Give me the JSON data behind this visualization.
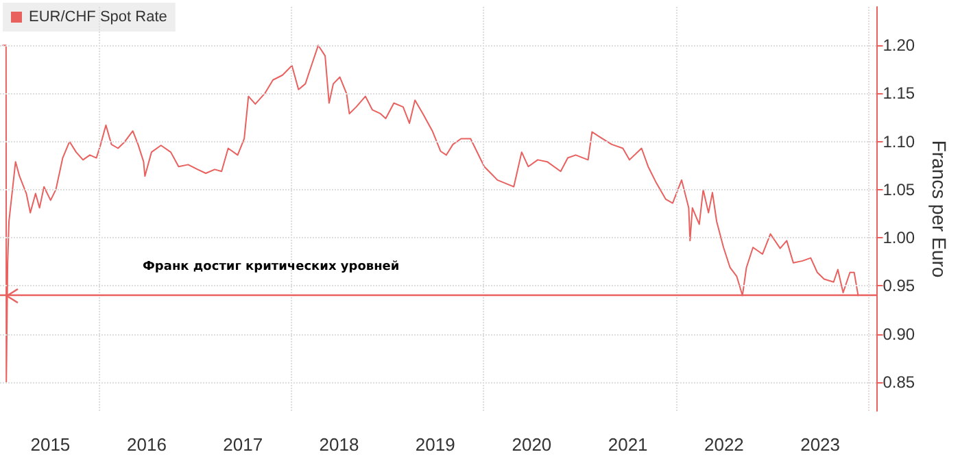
{
  "chart_data": {
    "type": "line",
    "ylabel": "Francs per Euro",
    "x": [
      "2015-01-02",
      "2015-01-14",
      "2015-01-15",
      "2015-01-20",
      "2015-01-25",
      "2015-02-19",
      "2015-03-06",
      "2015-04-01",
      "2015-04-16",
      "2015-05-06",
      "2015-05-21",
      "2015-06-07",
      "2015-07-02",
      "2015-07-22",
      "2015-08-17",
      "2015-09-12",
      "2015-10-07",
      "2015-11-02",
      "2015-11-28",
      "2015-12-23",
      "2016-01-08",
      "2016-01-28",
      "2016-02-18",
      "2016-03-14",
      "2016-04-09",
      "2016-05-09",
      "2016-05-29",
      "2016-06-19",
      "2016-06-24",
      "2016-07-19",
      "2016-08-24",
      "2016-09-30",
      "2016-10-30",
      "2016-12-05",
      "2017-01-10",
      "2017-02-10",
      "2017-03-16",
      "2017-04-11",
      "2017-05-06",
      "2017-06-11",
      "2017-07-06",
      "2017-07-22",
      "2017-08-17",
      "2017-09-22",
      "2017-10-23",
      "2017-11-28",
      "2018-01-03",
      "2018-01-28",
      "2018-02-23",
      "2018-03-18",
      "2018-04-13",
      "2018-05-09",
      "2018-05-24",
      "2018-06-09",
      "2018-07-04",
      "2018-07-29",
      "2018-08-09",
      "2018-09-04",
      "2018-10-09",
      "2018-11-04",
      "2018-12-05",
      "2018-12-25",
      "2019-01-25",
      "2019-03-01",
      "2019-03-25",
      "2019-04-15",
      "2019-05-15",
      "2019-06-20",
      "2019-07-21",
      "2019-08-12",
      "2019-09-06",
      "2019-10-07",
      "2019-11-12",
      "2020-01-03",
      "2020-02-22",
      "2020-04-24",
      "2020-05-24",
      "2020-06-18",
      "2020-07-24",
      "2020-08-29",
      "2020-10-19",
      "2020-11-15",
      "2020-12-15",
      "2021-01-31",
      "2021-02-15",
      "2021-03-21",
      "2021-05-01",
      "2021-06-12",
      "2021-07-07",
      "2021-08-22",
      "2021-09-16",
      "2021-10-17",
      "2021-11-22",
      "2021-12-18",
      "2022-01-21",
      "2022-02-17",
      "2022-02-22",
      "2022-03-03",
      "2022-03-29",
      "2022-04-13",
      "2022-05-03",
      "2022-05-18",
      "2022-06-03",
      "2022-06-29",
      "2022-07-24",
      "2022-08-18",
      "2022-09-09",
      "2022-09-24",
      "2022-10-19",
      "2022-11-24",
      "2022-12-24",
      "2023-01-30",
      "2023-02-24",
      "2023-03-21",
      "2023-04-25",
      "2023-05-26",
      "2023-06-20",
      "2023-07-16",
      "2023-08-21",
      "2023-09-06",
      "2023-09-26",
      "2023-10-22",
      "2023-11-07",
      "2023-11-22"
    ],
    "series": [
      {
        "name": "EUR/CHF Spot Rate",
        "color": "#e8615f",
        "values": [
          1.2,
          1.2,
          0.85,
          0.974,
          1.017,
          1.079,
          1.064,
          1.046,
          1.026,
          1.046,
          1.031,
          1.053,
          1.039,
          1.05,
          1.083,
          1.1,
          1.089,
          1.081,
          1.086,
          1.083,
          1.097,
          1.117,
          1.097,
          1.093,
          1.1,
          1.111,
          1.097,
          1.079,
          1.064,
          1.089,
          1.096,
          1.089,
          1.074,
          1.076,
          1.071,
          1.067,
          1.071,
          1.069,
          1.093,
          1.086,
          1.103,
          1.147,
          1.139,
          1.15,
          1.164,
          1.169,
          1.179,
          1.154,
          1.16,
          1.179,
          1.2,
          1.189,
          1.14,
          1.16,
          1.167,
          1.15,
          1.129,
          1.136,
          1.147,
          1.133,
          1.129,
          1.124,
          1.14,
          1.136,
          1.119,
          1.143,
          1.129,
          1.111,
          1.09,
          1.086,
          1.097,
          1.103,
          1.103,
          1.074,
          1.06,
          1.053,
          1.089,
          1.074,
          1.081,
          1.079,
          1.069,
          1.083,
          1.086,
          1.081,
          1.11,
          1.104,
          1.097,
          1.093,
          1.081,
          1.093,
          1.074,
          1.057,
          1.04,
          1.036,
          1.06,
          1.031,
          0.997,
          1.031,
          1.014,
          1.05,
          1.026,
          1.047,
          1.017,
          0.99,
          0.969,
          0.96,
          0.94,
          0.969,
          0.99,
          0.983,
          1.004,
          0.989,
          0.997,
          0.974,
          0.976,
          0.979,
          0.964,
          0.957,
          0.954,
          0.967,
          0.943,
          0.964,
          0.964,
          0.94
        ]
      }
    ],
    "xlim": [
      "2014-12-22",
      "2024-02-03"
    ],
    "xticks": [
      {
        "value": "2015-07-01",
        "label": "2015"
      },
      {
        "value": "2016-07-01",
        "label": "2016"
      },
      {
        "value": "2017-07-01",
        "label": "2017"
      },
      {
        "value": "2018-07-01",
        "label": "2018"
      },
      {
        "value": "2019-07-01",
        "label": "2019"
      },
      {
        "value": "2020-07-01",
        "label": "2020"
      },
      {
        "value": "2021-07-01",
        "label": "2021"
      },
      {
        "value": "2022-07-01",
        "label": "2022"
      },
      {
        "value": "2023-07-01",
        "label": "2023"
      },
      {
        "value": "2016-01-01",
        "label": null
      },
      {
        "value": "2018-01-01",
        "label": null
      },
      {
        "value": "2020-01-01",
        "label": null
      },
      {
        "value": "2022-01-01",
        "label": null
      },
      {
        "value": "2024-01-01",
        "label": null
      }
    ],
    "ylim": [
      0.82,
      1.24
    ],
    "yticks": [
      {
        "value": 0.85,
        "label": "0.85"
      },
      {
        "value": 0.9,
        "label": "0.90"
      },
      {
        "value": 0.95,
        "label": "0.95"
      },
      {
        "value": 1.0,
        "label": "1.00"
      },
      {
        "value": 1.05,
        "label": "1.05"
      },
      {
        "value": 1.1,
        "label": "1.10"
      },
      {
        "value": 1.15,
        "label": "1.15"
      },
      {
        "value": 1.2,
        "label": "1.20"
      }
    ],
    "ref_lines": [
      {
        "axis": "y",
        "value": 0.94,
        "label": "Франк достиг критических уровней",
        "color": "#e8615f"
      }
    ],
    "grid": true,
    "legend": "top left",
    "marker": "none",
    "line_style": "solid"
  }
}
